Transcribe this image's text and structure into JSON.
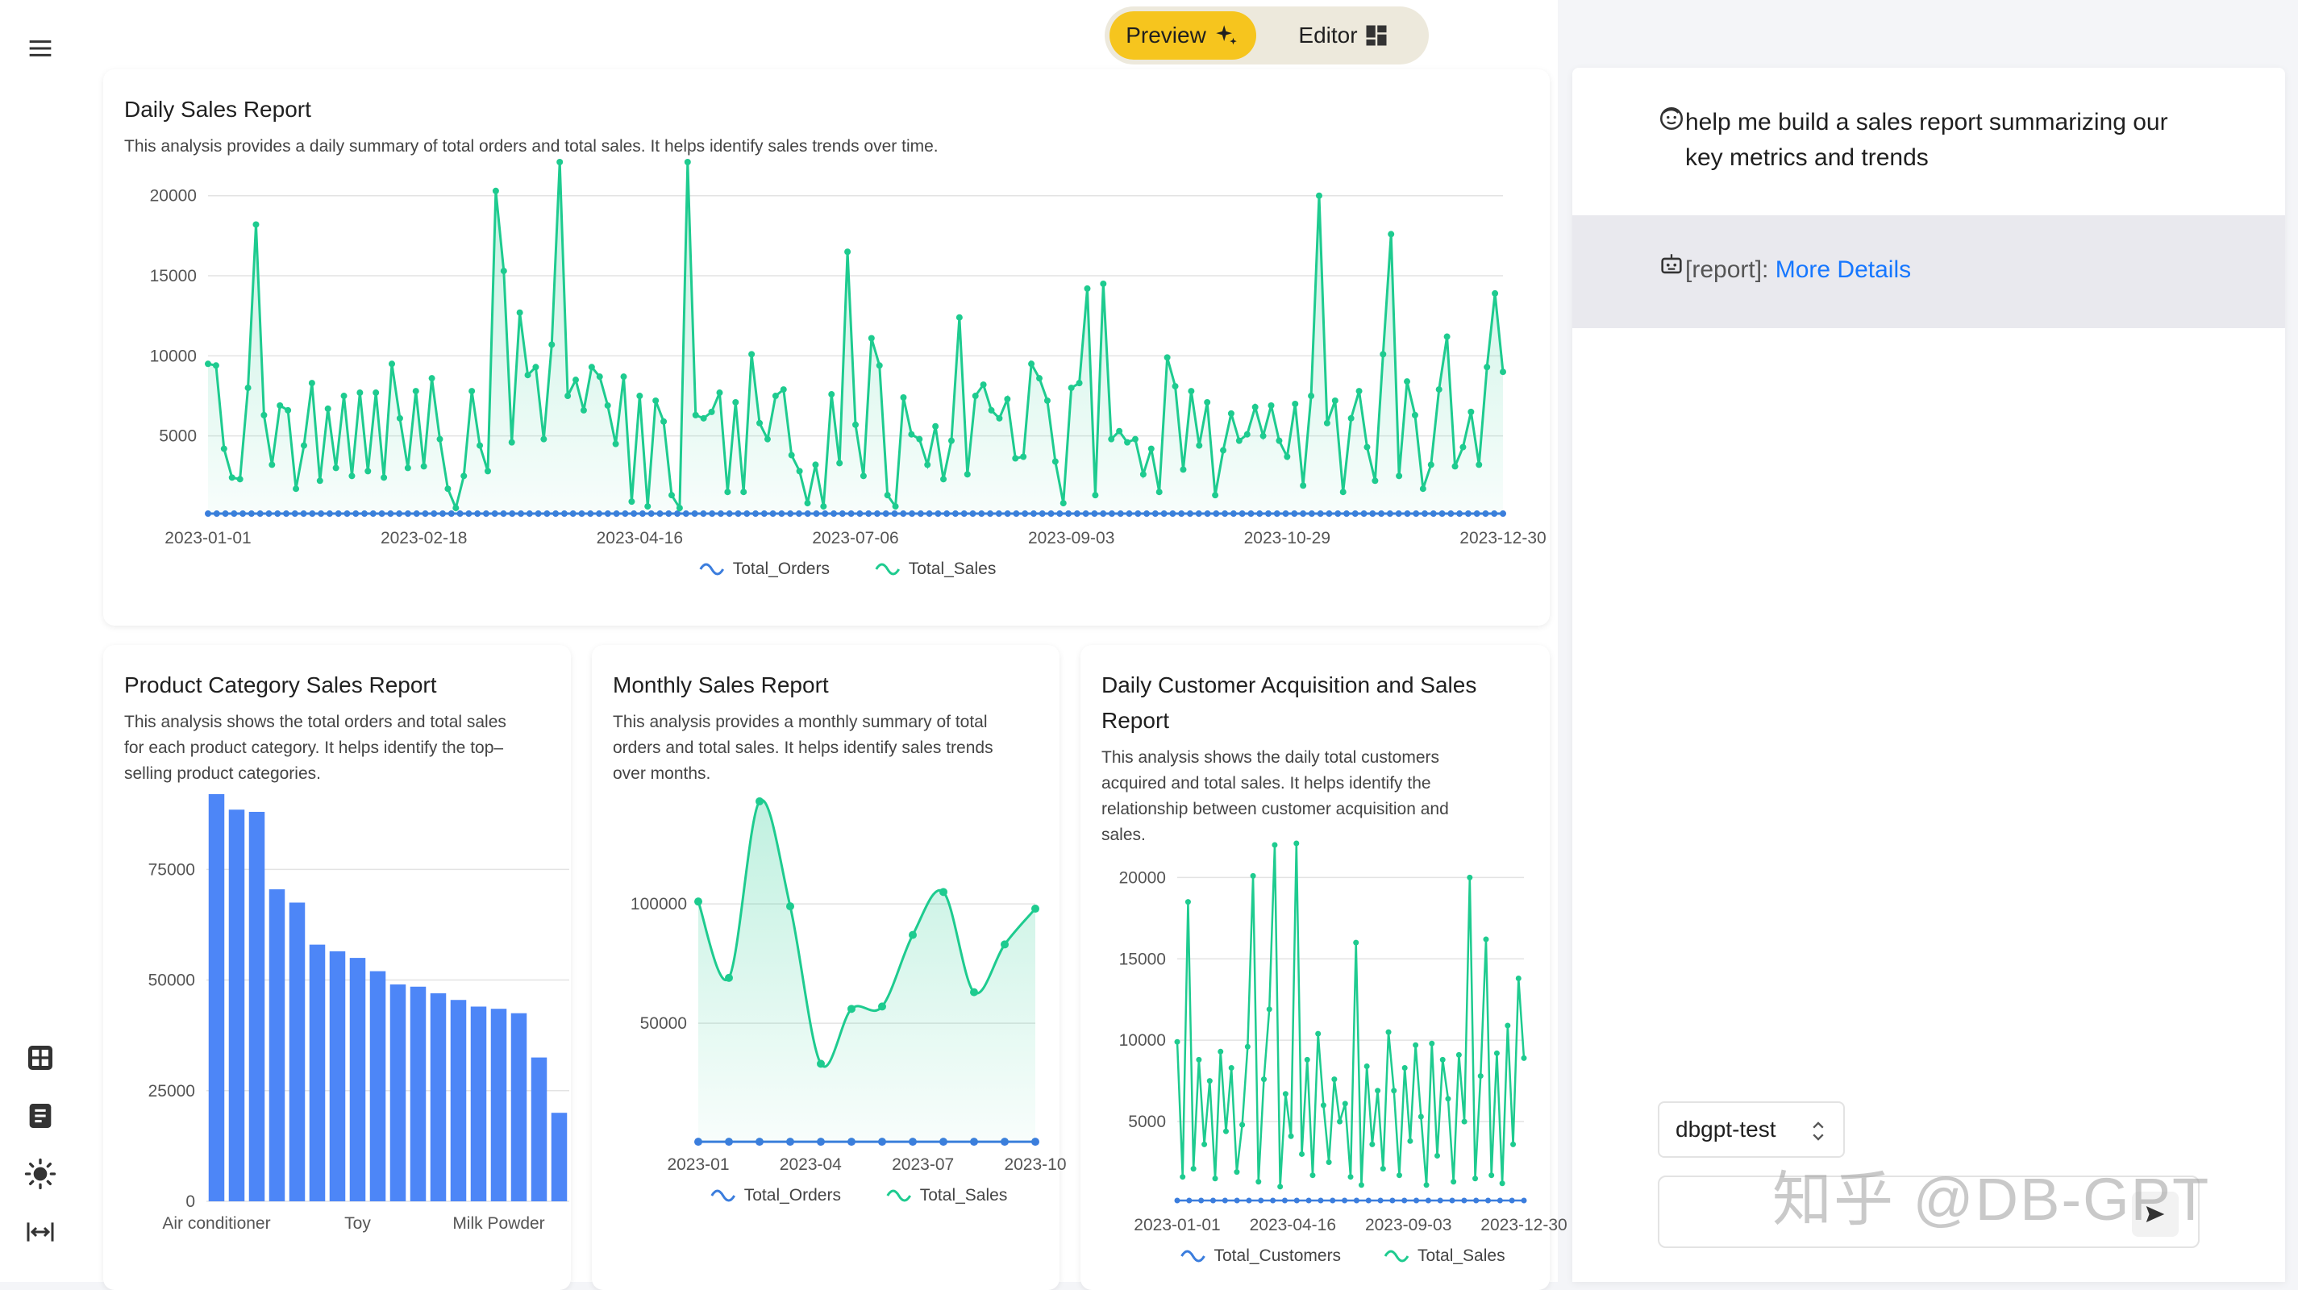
{
  "toggle": {
    "preview_label": "Preview",
    "editor_label": "Editor"
  },
  "sidebar": {
    "icons": [
      "menu-icon",
      "dashboard-grid-icon",
      "document-icon",
      "theme-sun-icon",
      "width-expand-icon"
    ]
  },
  "chat": {
    "user_message": "help me build a sales report summarizing our key metrics and trends",
    "bot_prefix": "[report]:",
    "bot_link": "More Details",
    "db_selected": "dbgpt-test",
    "input_value": "",
    "send_icon": "send-icon"
  },
  "watermark": "知乎 @DB-GPT",
  "colors": {
    "accent_yellow": "#f6c51e",
    "series_blue": "#3b7ddd",
    "series_green": "#1ecb8f",
    "bar_blue": "#4d86f7",
    "link_blue": "#1677ff"
  },
  "cards": {
    "daily": {
      "title": "Daily Sales Report",
      "desc": "This analysis provides a daily summary of total orders and total sales. It helps identify sales trends over time."
    },
    "category": {
      "title": "Product Category Sales Report",
      "desc_lines": [
        "This analysis shows the total orders and total sales",
        "for each product category. It helps identify the top–",
        "selling product categories."
      ]
    },
    "monthly": {
      "title": "Monthly Sales Report",
      "desc_lines": [
        "This analysis provides a monthly summary of total",
        "orders and total sales. It helps identify sales trends",
        "over months."
      ]
    },
    "customer": {
      "title_lines": [
        "Daily Customer Acquisition and Sales",
        "Report"
      ],
      "desc_lines": [
        "This analysis shows the daily total customers",
        "acquired and total sales. It helps identify the",
        "relationship between customer acquisition and",
        "sales."
      ]
    }
  },
  "chart_data": [
    {
      "id": "daily",
      "type": "area",
      "title": "Daily Sales Report",
      "x_ticks": [
        "2023-01-01",
        "2023-02-18",
        "2023-04-16",
        "2023-07-06",
        "2023-09-03",
        "2023-10-29",
        "2023-12-30"
      ],
      "y_ticks": [
        5000,
        10000,
        15000,
        20000
      ],
      "ylim": [
        0,
        22000
      ],
      "legend_position": "bottom",
      "grid": true,
      "series": [
        {
          "name": "Total_Orders",
          "color": "#3b7ddd",
          "constant": 150,
          "points": 150
        },
        {
          "name": "Total_Sales",
          "color": "#1ecb8f",
          "values": [
            9500,
            9400,
            4200,
            2400,
            2300,
            8000,
            18200,
            6300,
            3200,
            6900,
            6600,
            1700,
            4400,
            8300,
            2200,
            6700,
            3000,
            7500,
            2500,
            7700,
            2800,
            7700,
            2400,
            9500,
            6100,
            3000,
            7800,
            3100,
            8600,
            4800,
            1700,
            500,
            2500,
            7800,
            4400,
            2800,
            20300,
            15300,
            4600,
            12700,
            8800,
            9300,
            4800,
            10700,
            22100,
            7500,
            8500,
            6600,
            9300,
            8700,
            6900,
            4500,
            8700,
            900,
            7500,
            600,
            7200,
            5900,
            1300,
            500,
            22100,
            6300,
            6100,
            6500,
            7700,
            1500,
            7100,
            1500,
            10100,
            5800,
            4800,
            7500,
            7900,
            3800,
            2800,
            800,
            3200,
            600,
            7600,
            3300,
            16500,
            5700,
            2500,
            11100,
            9400,
            1300,
            600,
            7400,
            5100,
            4800,
            3200,
            5600,
            2300,
            4700,
            12400,
            2600,
            7500,
            8200,
            6600,
            6100,
            7300,
            3600,
            3700,
            9500,
            8600,
            7200,
            3400,
            800,
            8000,
            8300,
            14200,
            1300,
            14500,
            4800,
            5300,
            4600,
            4800,
            2600,
            4200,
            1500,
            9900,
            8100,
            2900,
            7800,
            4400,
            7100,
            1300,
            4100,
            6400,
            4700,
            5100,
            6800,
            5000,
            6900,
            4700,
            3700,
            7000,
            1900,
            7500,
            20000,
            5800,
            7200,
            1500,
            6100,
            7800,
            4300,
            2200,
            10100,
            17600,
            2500,
            8400,
            6300,
            1700,
            3200,
            7900,
            11200,
            3100,
            4300,
            6500,
            3200,
            9300,
            13900,
            9000
          ]
        }
      ]
    },
    {
      "id": "category",
      "type": "bar",
      "title": "Product Category Sales Report",
      "x_tick_labels": [
        "Air conditioner",
        "Toy",
        "Milk Powder"
      ],
      "y_ticks": [
        0,
        25000,
        50000,
        75000
      ],
      "ylim": [
        0,
        92000
      ],
      "grid": true,
      "values": [
        92000,
        88500,
        88000,
        70500,
        67500,
        58000,
        56500,
        55000,
        52000,
        49000,
        48500,
        47000,
        45500,
        44000,
        43500,
        42500,
        32500,
        20000
      ]
    },
    {
      "id": "monthly",
      "type": "area",
      "title": "Monthly Sales Report",
      "x_ticks": [
        "2023-01",
        "2023-04",
        "2023-07",
        "2023-10"
      ],
      "y_ticks": [
        50000,
        100000
      ],
      "ylim": [
        0,
        145000
      ],
      "legend_position": "bottom",
      "grid": true,
      "series": [
        {
          "name": "Total_Orders",
          "color": "#3b7ddd",
          "values": [
            300,
            300,
            300,
            300,
            300,
            300,
            300,
            300,
            300,
            300,
            300,
            300
          ]
        },
        {
          "name": "Total_Sales",
          "color": "#1ecb8f",
          "values": [
            101000,
            69000,
            143000,
            99000,
            33000,
            56000,
            57000,
            87000,
            105000,
            63000,
            83000,
            98000
          ]
        }
      ]
    },
    {
      "id": "customer",
      "type": "line",
      "title": "Daily Customer Acquisition and Sales Report",
      "x_ticks": [
        "2023-01-01",
        "2023-04-16",
        "2023-09-03",
        "2023-12-30"
      ],
      "y_ticks": [
        5000,
        10000,
        15000,
        20000
      ],
      "ylim": [
        0,
        22000
      ],
      "legend_position": "bottom",
      "grid": true,
      "series": [
        {
          "name": "Total_Customers",
          "color": "#3b7ddd",
          "constant": 150,
          "points": 30
        },
        {
          "name": "Total_Sales",
          "color": "#1ecb8f",
          "values": [
            9900,
            1600,
            18500,
            2100,
            8800,
            3600,
            7500,
            1500,
            9300,
            4400,
            8300,
            1900,
            4800,
            9600,
            20100,
            1300,
            7600,
            11900,
            22000,
            1000,
            6700,
            4100,
            22100,
            3000,
            8800,
            1700,
            10400,
            6000,
            2500,
            7600,
            5000,
            6100,
            1600,
            16000,
            1100,
            8400,
            3600,
            6900,
            2100,
            10500,
            6900,
            1700,
            8300,
            3800,
            9700,
            5300,
            1100,
            9800,
            2900,
            8800,
            6400,
            1300,
            9100,
            5000,
            20000,
            1500,
            7800,
            16200,
            1700,
            9200,
            1200,
            10900,
            3600,
            13800,
            8900
          ]
        }
      ]
    }
  ]
}
